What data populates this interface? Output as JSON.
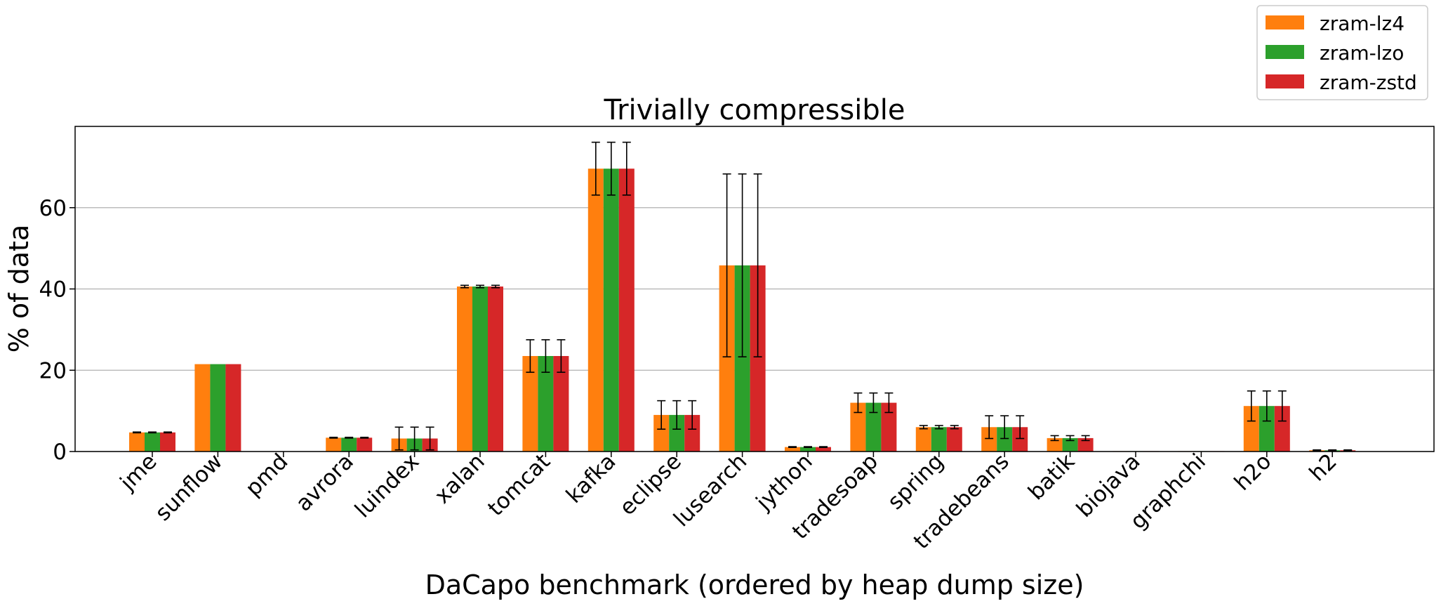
{
  "chart_data": {
    "type": "bar",
    "title": "Trivially compressible",
    "xlabel": "DaCapo benchmark (ordered by heap dump size)",
    "ylabel": "% of data",
    "ylim": [
      0,
      80
    ],
    "yticks": [
      "0",
      "20",
      "40",
      "60"
    ],
    "grid": "horizontal",
    "legend_position": "top-right",
    "categories": [
      "jme",
      "sunflow",
      "pmd",
      "avrora",
      "luindex",
      "xalan",
      "tomcat",
      "kafka",
      "eclipse",
      "lusearch",
      "jython",
      "tradesoap",
      "spring",
      "tradebeans",
      "batik",
      "biojava",
      "graphchi",
      "h2o",
      "h2"
    ],
    "series": [
      {
        "name": "zram-lz4",
        "color": "#ff7f0e",
        "values": [
          4.7,
          21.5,
          0.0,
          3.4,
          3.2,
          40.6,
          23.5,
          69.6,
          9.0,
          45.8,
          1.1,
          12.0,
          6.0,
          6.0,
          3.3,
          0.1,
          0.1,
          11.2,
          0.3
        ],
        "errors": [
          0.1,
          0.0,
          0.0,
          0.1,
          2.8,
          0.3,
          4.0,
          6.5,
          3.5,
          22.5,
          0.1,
          2.4,
          0.4,
          2.8,
          0.6,
          0.0,
          0.0,
          3.7,
          0.1
        ]
      },
      {
        "name": "zram-lzo",
        "color": "#2ca02c",
        "values": [
          4.7,
          21.5,
          0.0,
          3.4,
          3.2,
          40.6,
          23.5,
          69.6,
          9.0,
          45.8,
          1.1,
          12.0,
          6.0,
          6.0,
          3.3,
          0.1,
          0.1,
          11.2,
          0.3
        ],
        "errors": [
          0.1,
          0.0,
          0.0,
          0.1,
          2.8,
          0.3,
          4.0,
          6.5,
          3.5,
          22.5,
          0.1,
          2.4,
          0.4,
          2.8,
          0.6,
          0.0,
          0.0,
          3.7,
          0.1
        ]
      },
      {
        "name": "zram-zstd",
        "color": "#d62728",
        "values": [
          4.7,
          21.5,
          0.0,
          3.4,
          3.2,
          40.6,
          23.5,
          69.6,
          9.0,
          45.8,
          1.1,
          12.0,
          6.0,
          6.0,
          3.3,
          0.1,
          0.1,
          11.2,
          0.3
        ],
        "errors": [
          0.1,
          0.0,
          0.0,
          0.1,
          2.8,
          0.3,
          4.0,
          6.5,
          3.5,
          22.5,
          0.1,
          2.4,
          0.4,
          2.8,
          0.6,
          0.0,
          0.0,
          3.7,
          0.1
        ]
      }
    ]
  }
}
